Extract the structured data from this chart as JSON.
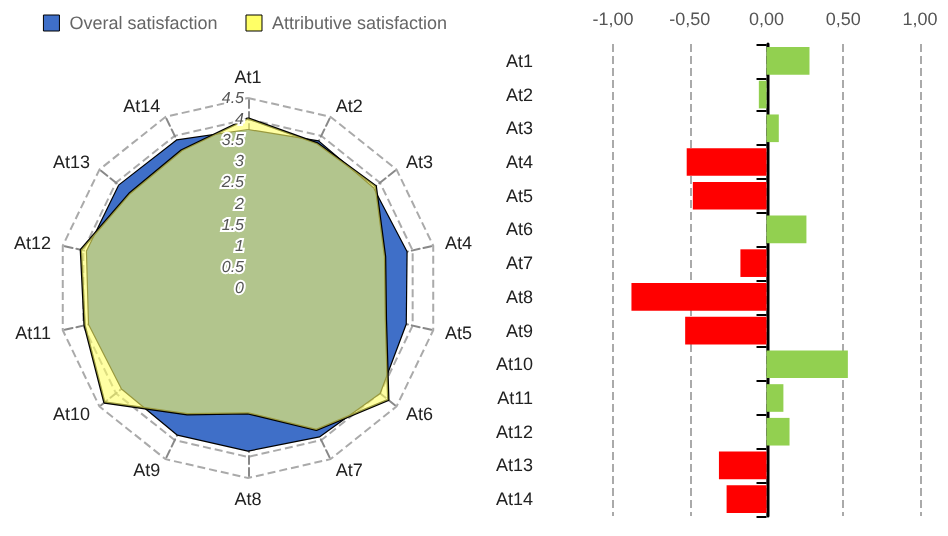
{
  "chart_data": [
    {
      "type": "radar",
      "categories": [
        "At1",
        "At2",
        "At3",
        "At4",
        "At5",
        "At6",
        "At7",
        "At8",
        "At9",
        "At10",
        "At11",
        "At12",
        "At13",
        "At14"
      ],
      "ylim": [
        0,
        4.5
      ],
      "yticks": [
        0,
        0.5,
        1,
        1.5,
        2,
        2.5,
        3,
        3.5,
        4,
        4.5
      ],
      "legend": "top",
      "grid": true,
      "series": [
        {
          "name": "Overal satisfaction",
          "color": "#3f6fc8",
          "values": [
            3.74,
            3.85,
            3.79,
            3.85,
            3.83,
            3.99,
            3.9,
            3.85,
            3.85,
            3.82,
            3.86,
            3.91,
            3.9,
            3.88
          ]
        },
        {
          "name": "Attributive satisfaction",
          "color": "#ffff66",
          "values": [
            4.02,
            3.8,
            3.87,
            3.33,
            3.35,
            4.25,
            3.73,
            2.97,
            3.32,
            4.35,
            3.97,
            4.06,
            3.59,
            3.62
          ]
        }
      ]
    },
    {
      "type": "bar",
      "orientation": "horizontal",
      "categories": [
        "At1",
        "At2",
        "At3",
        "At4",
        "At5",
        "At6",
        "At7",
        "At8",
        "At9",
        "At10",
        "At11",
        "At12",
        "At13",
        "At14"
      ],
      "values": [
        0.28,
        -0.05,
        0.08,
        -0.52,
        -0.48,
        0.26,
        -0.17,
        -0.88,
        -0.53,
        0.53,
        0.11,
        0.15,
        -0.31,
        -0.26
      ],
      "colors": [
        "#92d050",
        "#92d050",
        "#92d050",
        "#ff0000",
        "#ff0000",
        "#92d050",
        "#ff0000",
        "#ff0000",
        "#ff0000",
        "#92d050",
        "#92d050",
        "#92d050",
        "#ff0000",
        "#ff0000"
      ],
      "xlim": [
        -1,
        1
      ],
      "xticks": [
        {
          "value": -1,
          "label": "-1,00"
        },
        {
          "value": -0.5,
          "label": "-0,50"
        },
        {
          "value": 0,
          "label": "0,00"
        },
        {
          "value": 0.5,
          "label": "0,50"
        },
        {
          "value": 1,
          "label": "1,00"
        }
      ],
      "grid": "x"
    }
  ]
}
